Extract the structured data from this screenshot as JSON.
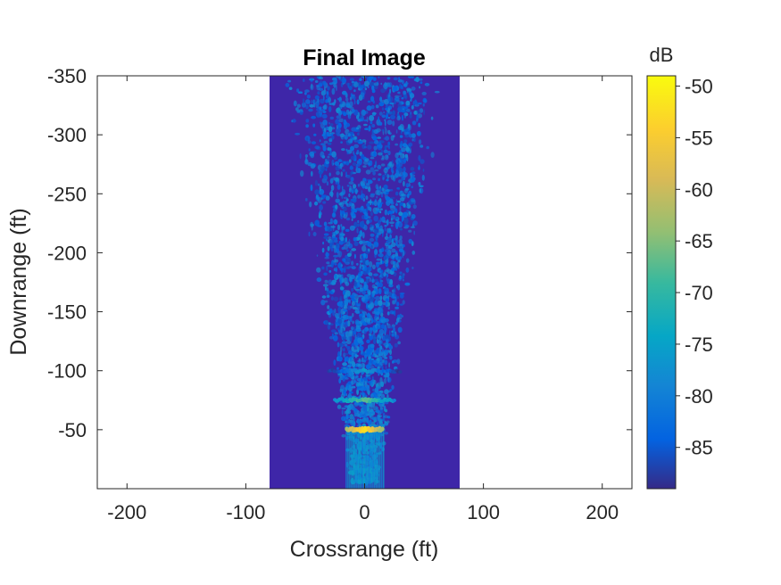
{
  "chart_data": {
    "type": "heatmap",
    "title": "Final Image",
    "xlabel": "Crossrange (ft)",
    "ylabel": "Downrange (ft)",
    "xlim": [
      -225,
      225
    ],
    "ylim": [
      -350,
      0
    ],
    "y_reversed": true,
    "x_ticks": [
      -200,
      -100,
      0,
      100,
      200
    ],
    "x_tick_labels": [
      "-200",
      "-100",
      "0",
      "100",
      "200"
    ],
    "y_ticks": [
      -350,
      -300,
      -250,
      -200,
      -150,
      -100,
      -50
    ],
    "y_tick_labels": [
      "-350",
      "-300",
      "-250",
      "-200",
      "-150",
      "-100",
      "-50"
    ],
    "image_extent": {
      "x": [
        -80,
        80
      ],
      "y": [
        -350,
        0
      ]
    },
    "colormap": "parula",
    "background_color": "#3e26a8",
    "colorbar": {
      "label": "dB",
      "range": [
        -89,
        -49
      ],
      "ticks": [
        -50,
        -55,
        -60,
        -65,
        -70,
        -75,
        -80,
        -85
      ],
      "tick_labels": [
        "-50",
        "-55",
        "-60",
        "-65",
        "-70",
        "-75",
        "-80",
        "-85"
      ]
    },
    "features": [
      {
        "downrange": -50,
        "crossrange": [
          -15,
          15
        ],
        "level_db": -50
      },
      {
        "downrange": -75,
        "crossrange": [
          -25,
          25
        ],
        "level_db": -65
      },
      {
        "downrange": -100,
        "crossrange": [
          -30,
          30
        ],
        "level_db": -75
      }
    ],
    "grid": false
  }
}
